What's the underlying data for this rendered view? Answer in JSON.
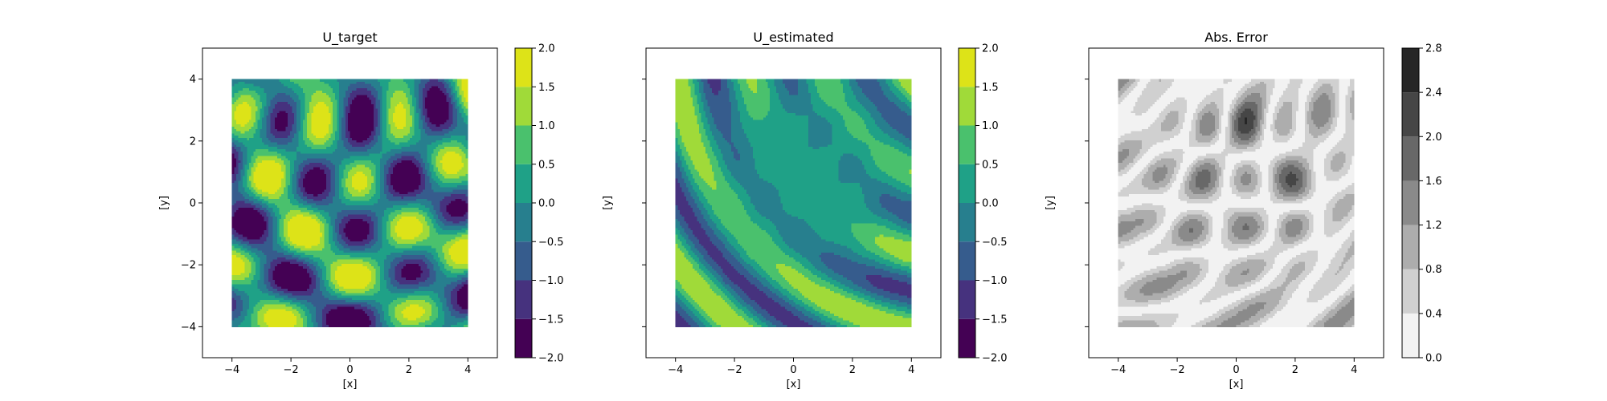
{
  "chart_data": [
    {
      "type": "heatmap",
      "subtype": "filled-contour",
      "title": "U_target",
      "xlabel": "[x]",
      "ylabel": "[y]",
      "xlim": [
        -5,
        5
      ],
      "ylim": [
        -5,
        5
      ],
      "data_extent": {
        "x": [
          -4,
          4
        ],
        "y": [
          -4,
          4
        ]
      },
      "xticks": [
        "−4",
        "−2",
        "0",
        "2",
        "4"
      ],
      "yticks": [
        "−4",
        "−2",
        "0",
        "2",
        "4"
      ],
      "yticklabels_visible": true,
      "colormap": "viridis",
      "colorbar": {
        "levels": [
          -2.0,
          -1.5,
          -1.0,
          -0.5,
          0.0,
          0.5,
          1.0,
          1.5,
          2.0
        ],
        "ticklabels": [
          "−2.0",
          "−1.5",
          "−1.0",
          "−0.5",
          "0.0",
          "0.5",
          "1.0",
          "1.5",
          "2.0"
        ],
        "colors": [
          "#440154",
          "#46327e",
          "#365c8d",
          "#277f8e",
          "#1fa187",
          "#4ac16d",
          "#a0da39",
          "#dde318"
        ]
      },
      "grid": false
    },
    {
      "type": "heatmap",
      "subtype": "filled-contour",
      "title": "U_estimated",
      "xlabel": "[x]",
      "ylabel": "[y]",
      "xlim": [
        -5,
        5
      ],
      "ylim": [
        -5,
        5
      ],
      "data_extent": {
        "x": [
          -4,
          4
        ],
        "y": [
          -4,
          4
        ]
      },
      "xticks": [
        "−4",
        "−2",
        "0",
        "2",
        "4"
      ],
      "yticks": [
        "−4",
        "−2",
        "0",
        "2",
        "4"
      ],
      "yticklabels_visible": false,
      "colormap": "viridis",
      "colorbar": {
        "levels": [
          -2.0,
          -1.5,
          -1.0,
          -0.5,
          0.0,
          0.5,
          1.0,
          1.5,
          2.0
        ],
        "ticklabels": [
          "−2.0",
          "−1.5",
          "−1.0",
          "−0.5",
          "0.0",
          "0.5",
          "1.0",
          "1.5",
          "2.0"
        ],
        "colors": [
          "#440154",
          "#46327e",
          "#365c8d",
          "#277f8e",
          "#1fa187",
          "#4ac16d",
          "#a0da39",
          "#dde318"
        ]
      },
      "grid": false
    },
    {
      "type": "heatmap",
      "subtype": "filled-contour",
      "title": "Abs. Error",
      "xlabel": "[x]",
      "ylabel": "[y]",
      "xlim": [
        -5,
        5
      ],
      "ylim": [
        -5,
        5
      ],
      "data_extent": {
        "x": [
          -4,
          4
        ],
        "y": [
          -4,
          4
        ]
      },
      "xticks": [
        "−4",
        "−2",
        "0",
        "2",
        "4"
      ],
      "yticks": [
        "−4",
        "−2",
        "0",
        "2",
        "4"
      ],
      "yticklabels_visible": false,
      "colormap": "Greys",
      "colorbar": {
        "levels": [
          0.0,
          0.4,
          0.8,
          1.2,
          1.6,
          2.0,
          2.4,
          2.8
        ],
        "ticklabels": [
          "0.0",
          "0.4",
          "0.8",
          "1.2",
          "1.6",
          "2.0",
          "2.4",
          "2.8"
        ],
        "colors": [
          "#f2f2f2",
          "#d0d0d0",
          "#adadad",
          "#8a8a8a",
          "#686868",
          "#464646",
          "#262626"
        ]
      },
      "grid": false
    }
  ]
}
